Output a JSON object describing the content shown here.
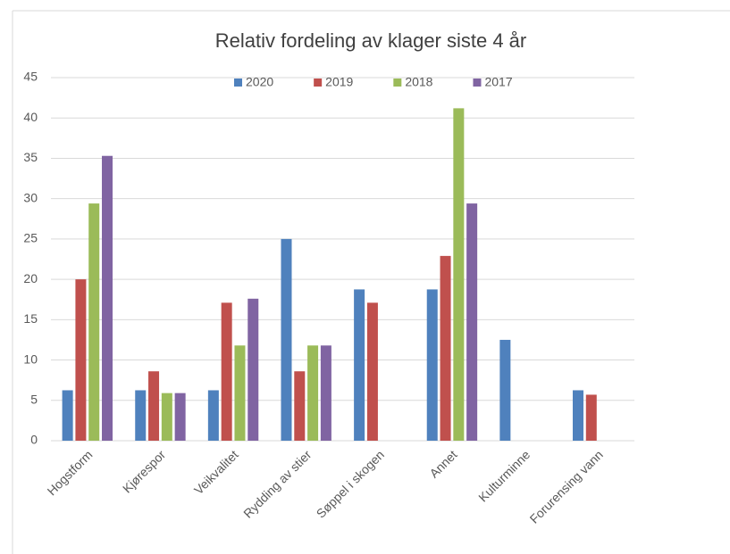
{
  "chart_data": {
    "type": "bar",
    "title": "Relativ fordeling av klager siste 4 år",
    "categories": [
      "Hogstform",
      "Kjørespor",
      "Veikvalitet",
      "Rydding av stier",
      "Søppel i skogen",
      "Annet",
      "Kulturminne",
      "Forurensing vann"
    ],
    "series": [
      {
        "name": "2020",
        "color": "#4f81bd",
        "values": [
          6.25,
          6.25,
          6.25,
          25,
          18.75,
          18.75,
          12.5,
          6.25
        ]
      },
      {
        "name": "2019",
        "color": "#c0504d",
        "values": [
          20,
          8.6,
          17.1,
          8.6,
          17.1,
          22.9,
          0,
          5.7
        ]
      },
      {
        "name": "2018",
        "color": "#9bbb59",
        "values": [
          29.4,
          5.9,
          11.8,
          11.8,
          0,
          41.2,
          0,
          0
        ]
      },
      {
        "name": "2017",
        "color": "#8064a2",
        "values": [
          35.3,
          5.9,
          17.6,
          11.8,
          0,
          29.4,
          0,
          0
        ]
      }
    ],
    "ylim": [
      0,
      45
    ],
    "yticks": [
      0,
      5,
      10,
      15,
      20,
      25,
      30,
      35,
      40,
      45
    ],
    "grid": true,
    "legend": "top"
  }
}
